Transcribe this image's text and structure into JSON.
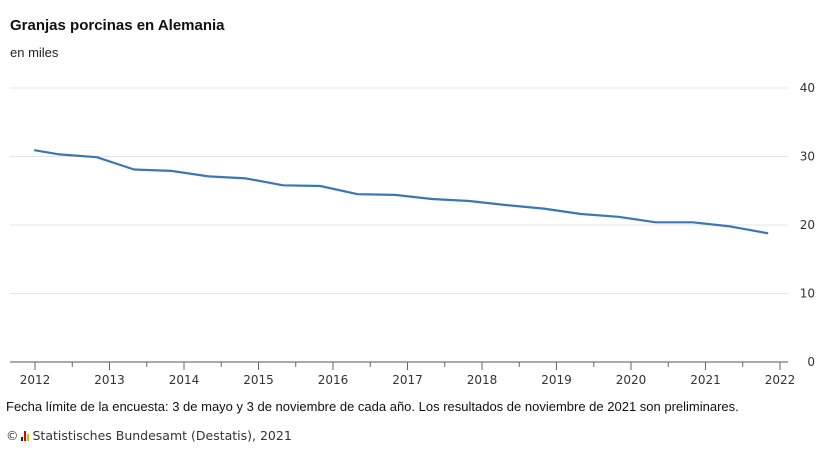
{
  "chart_data": {
    "type": "line",
    "title": "Granjas porcinas en Alemania",
    "subtitle": "en miles",
    "x": [
      2012.0,
      2012.33,
      2012.83,
      2013.33,
      2013.83,
      2014.33,
      2014.83,
      2015.33,
      2015.83,
      2016.33,
      2016.83,
      2017.33,
      2017.83,
      2018.33,
      2018.83,
      2019.33,
      2019.83,
      2020.33,
      2020.83,
      2021.33,
      2021.83
    ],
    "values": [
      30.9,
      30.3,
      29.9,
      28.1,
      27.9,
      27.1,
      26.8,
      25.8,
      25.7,
      24.5,
      24.4,
      23.8,
      23.5,
      22.9,
      22.4,
      21.6,
      21.2,
      20.4,
      20.4,
      19.8,
      18.8
    ],
    "xticks": [
      "2012",
      "2013",
      "2014",
      "2015",
      "2016",
      "2017",
      "2018",
      "2019",
      "2020",
      "2021",
      "2022"
    ],
    "yticks": [
      "0",
      "10",
      "20",
      "30",
      "40"
    ],
    "xlim": [
      2011.8,
      2022.0
    ],
    "ylim": [
      0,
      40
    ],
    "grid": true,
    "line_color": "#3a78b5"
  },
  "footer": {
    "note": "Fecha límite de la encuesta: 3 de mayo y 3 de noviembre de cada año. Los resultados de noviembre de 2021 son preliminares.",
    "copyright": "©",
    "source": "Statistisches Bundesamt (Destatis), 2021"
  }
}
